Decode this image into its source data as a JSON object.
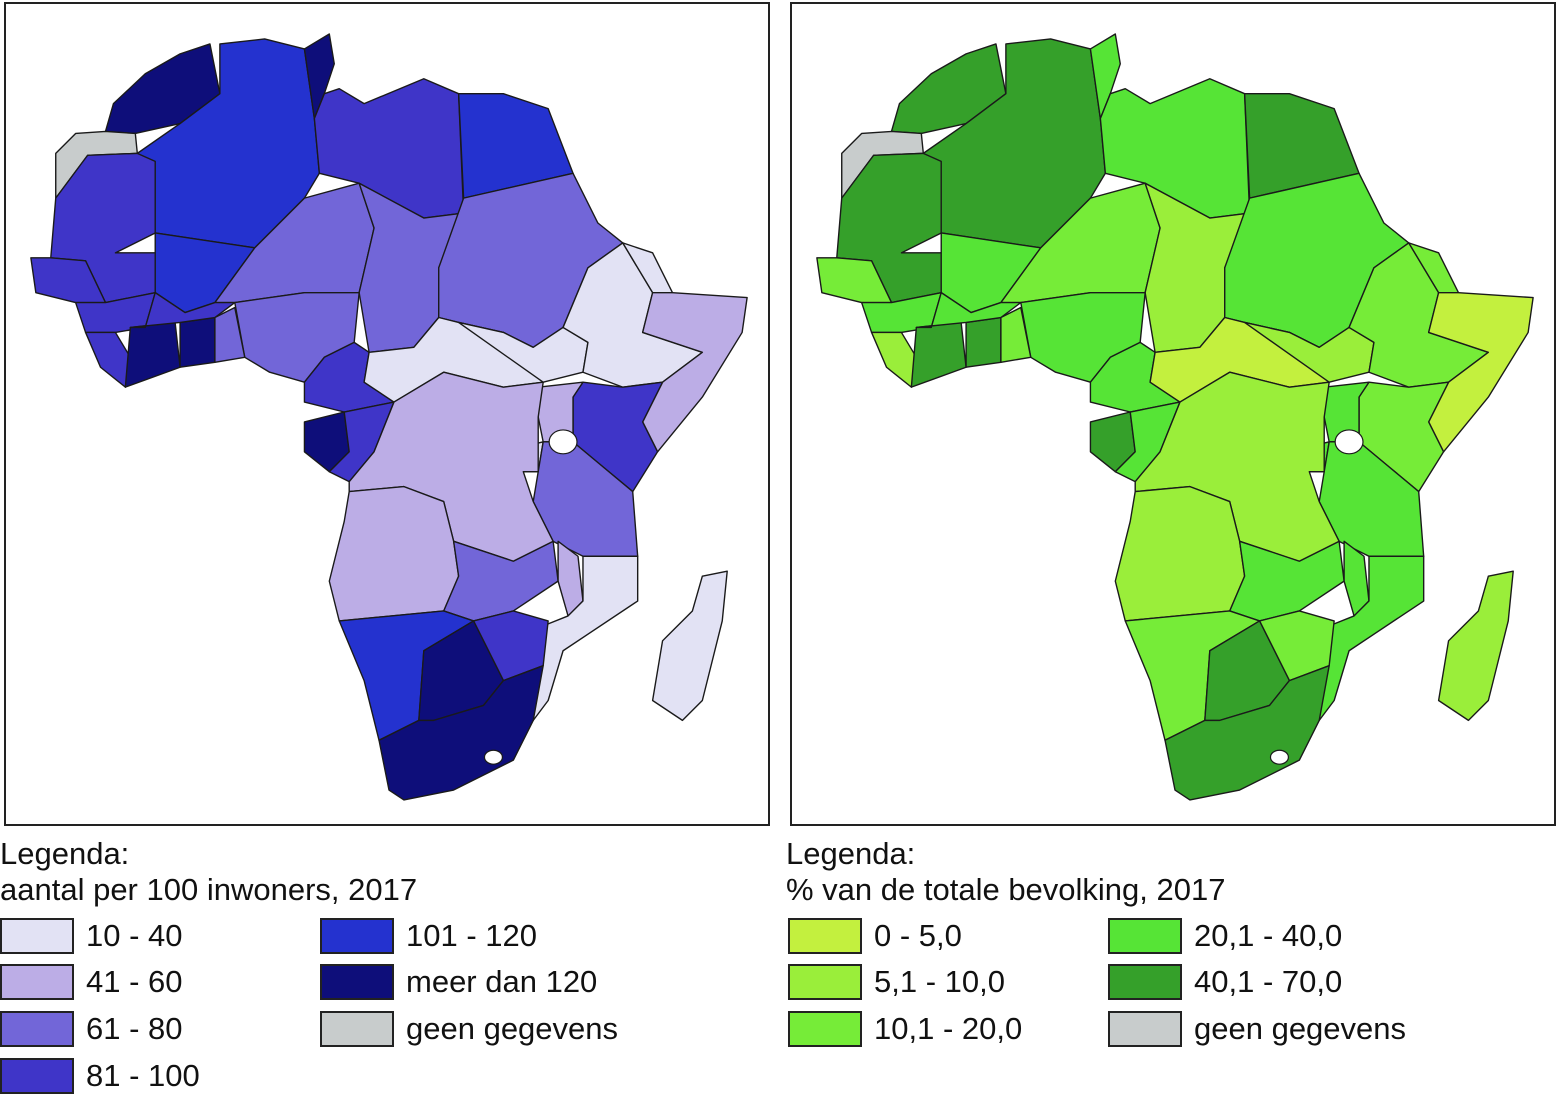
{
  "maps": [
    {
      "id": "left",
      "legend_title": "Legenda:",
      "legend_subtitle": "aantal per 100 inwoners, 2017",
      "classes": [
        {
          "label": "10 - 40",
          "color": "#e2e2f4"
        },
        {
          "label": "41 - 60",
          "color": "#bcade6"
        },
        {
          "label": "61 - 80",
          "color": "#7266d8"
        },
        {
          "label": "81 - 100",
          "color": "#3f35c8"
        },
        {
          "label": "101 - 120",
          "color": "#2432cf"
        },
        {
          "label": "meer dan 120",
          "color": "#0e0e7a"
        },
        {
          "label": "geen gegevens",
          "color": "#c8cccc"
        }
      ]
    },
    {
      "id": "right",
      "legend_title": "Legenda:",
      "legend_subtitle": "% van de totale bevolking, 2017",
      "classes": [
        {
          "label": "0 - 5,0",
          "color": "#c3f03e"
        },
        {
          "label": "5,1 - 10,0",
          "color": "#9aee3a"
        },
        {
          "label": "10,1 - 20,0",
          "color": "#76ec38"
        },
        {
          "label": "20,1 - 40,0",
          "color": "#56e436"
        },
        {
          "label": "40,1 - 70,0",
          "color": "#35a02a"
        },
        {
          "label": "geen gegevens",
          "color": "#c8cccc"
        }
      ]
    }
  ]
}
